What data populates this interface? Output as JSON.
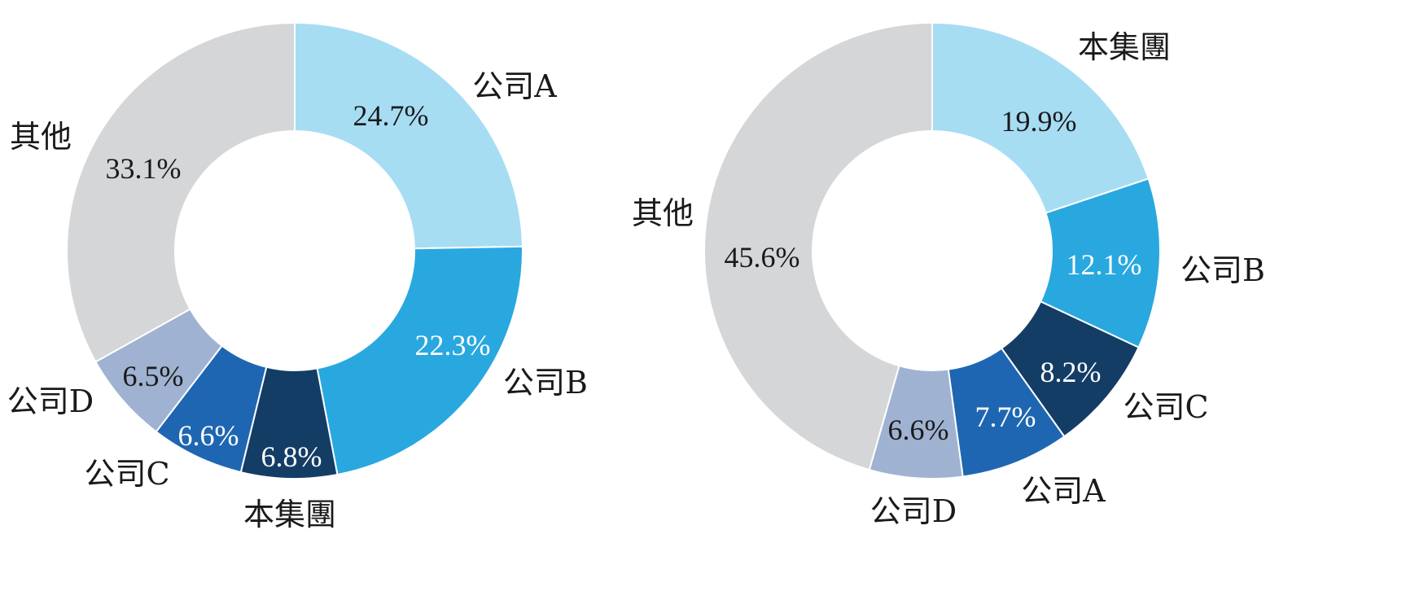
{
  "chart_data": [
    {
      "type": "pie",
      "donut": true,
      "slices": [
        {
          "label": "公司A",
          "value": 24.7,
          "value_label": "24.7%",
          "color": "#a6ddf3",
          "text_color": "#1a1a1a"
        },
        {
          "label": "公司B",
          "value": 22.3,
          "value_label": "22.3%",
          "color": "#29a8e0",
          "text_color": "#ffffff"
        },
        {
          "label": "本集團",
          "value": 6.8,
          "value_label": "6.8%",
          "color": "#143d66",
          "text_color": "#ffffff"
        },
        {
          "label": "公司C",
          "value": 6.6,
          "value_label": "6.6%",
          "color": "#1f66b2",
          "text_color": "#ffffff"
        },
        {
          "label": "公司D",
          "value": 6.5,
          "value_label": "6.5%",
          "color": "#9fb2d1",
          "text_color": "#1a1a1a"
        },
        {
          "label": "其他",
          "value": 33.1,
          "value_label": "33.1%",
          "color": "#d5d6d8",
          "text_color": "#1a1a1a"
        }
      ]
    },
    {
      "type": "pie",
      "donut": true,
      "slices": [
        {
          "label": "本集團",
          "value": 19.9,
          "value_label": "19.9%",
          "color": "#a6ddf3",
          "text_color": "#1a1a1a"
        },
        {
          "label": "公司B",
          "value": 12.1,
          "value_label": "12.1%",
          "color": "#29a8e0",
          "text_color": "#ffffff"
        },
        {
          "label": "公司C",
          "value": 8.2,
          "value_label": "8.2%",
          "color": "#143d66",
          "text_color": "#ffffff"
        },
        {
          "label": "公司A",
          "value": 7.7,
          "value_label": "7.7%",
          "color": "#1f66b2",
          "text_color": "#ffffff"
        },
        {
          "label": "公司D",
          "value": 6.6,
          "value_label": "6.6%",
          "color": "#9fb2d1",
          "text_color": "#1a1a1a"
        },
        {
          "label": "其他",
          "value": 45.6,
          "value_label": "45.6%",
          "color": "#d5d6d8",
          "text_color": "#1a1a1a"
        }
      ]
    }
  ]
}
